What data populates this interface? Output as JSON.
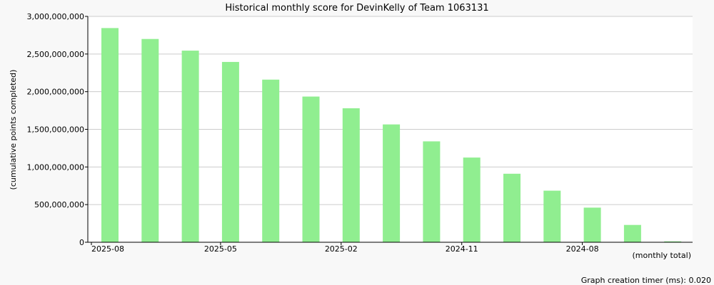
{
  "chart_data": {
    "type": "bar",
    "title": "Historical monthly score for DevinKelly of Team 1063131",
    "ylabel": "(cumulative points completed)",
    "xlabel": "(monthly total)",
    "footer": "Graph creation timer (ms): 0.020",
    "ylim": [
      0,
      3000000000
    ],
    "yticks": [
      0,
      500000000,
      1000000000,
      1500000000,
      2000000000,
      2500000000,
      3000000000
    ],
    "ytick_labels": [
      "0",
      "500,000,000",
      "1,000,000,000",
      "1,500,000,000",
      "2,000,000,000",
      "2,500,000,000",
      "3,000,000,000"
    ],
    "categories": [
      "2025-08",
      "2025-07",
      "2025-06",
      "2025-05",
      "2025-04",
      "2025-03",
      "2025-02",
      "2025-01",
      "2024-12",
      "2024-11",
      "2024-10",
      "2024-09",
      "2024-08",
      "2024-07",
      "2024-06"
    ],
    "xtick_labels": [
      "2025-08",
      "2025-05",
      "2025-02",
      "2024-11",
      "2024-08"
    ],
    "values": [
      2845000000,
      2700000000,
      2545000000,
      2395000000,
      2160000000,
      1935000000,
      1780000000,
      1565000000,
      1340000000,
      1125000000,
      910000000,
      685000000,
      460000000,
      230000000,
      12000000
    ],
    "bar_color": "#90ee90",
    "grid": true
  }
}
